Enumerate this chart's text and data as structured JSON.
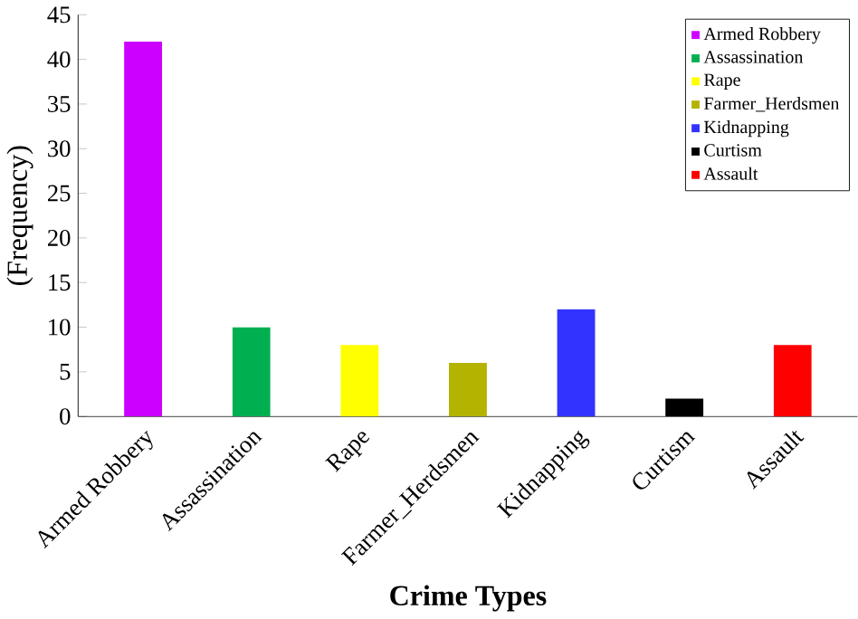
{
  "chart_data": {
    "type": "bar",
    "xlabel": "Crime Types",
    "ylabel": "(Frequency)",
    "categories": [
      "Armed Robbery",
      "Assassination",
      "Rape",
      "Farmer_Herdsmen",
      "Kidnapping",
      "Curtism",
      "Assault"
    ],
    "series": [
      {
        "name": "Armed Robbery",
        "color": "#cc00ff",
        "values": [
          42,
          null,
          null,
          null,
          null,
          null,
          null
        ]
      },
      {
        "name": "Assassination",
        "color": "#00b050",
        "values": [
          null,
          10,
          null,
          null,
          null,
          null,
          null
        ]
      },
      {
        "name": "Rape",
        "color": "#ffff00",
        "values": [
          null,
          null,
          8,
          null,
          null,
          null,
          null
        ]
      },
      {
        "name": "Farmer_Herdsmen",
        "color": "#b3b300",
        "values": [
          null,
          null,
          null,
          6,
          null,
          null,
          null
        ]
      },
      {
        "name": "Kidnapping",
        "color": "#3333ff",
        "values": [
          null,
          null,
          null,
          null,
          12,
          null,
          null
        ]
      },
      {
        "name": "Curtism",
        "color": "#000000",
        "values": [
          null,
          null,
          null,
          null,
          null,
          2,
          null
        ]
      },
      {
        "name": "Assault",
        "color": "#ff0000",
        "values": [
          null,
          null,
          null,
          null,
          null,
          null,
          8
        ]
      }
    ],
    "ylim": [
      0,
      45
    ],
    "yticks": [
      0,
      5,
      10,
      15,
      20,
      25,
      30,
      35,
      40,
      45
    ],
    "legend": "top right"
  }
}
